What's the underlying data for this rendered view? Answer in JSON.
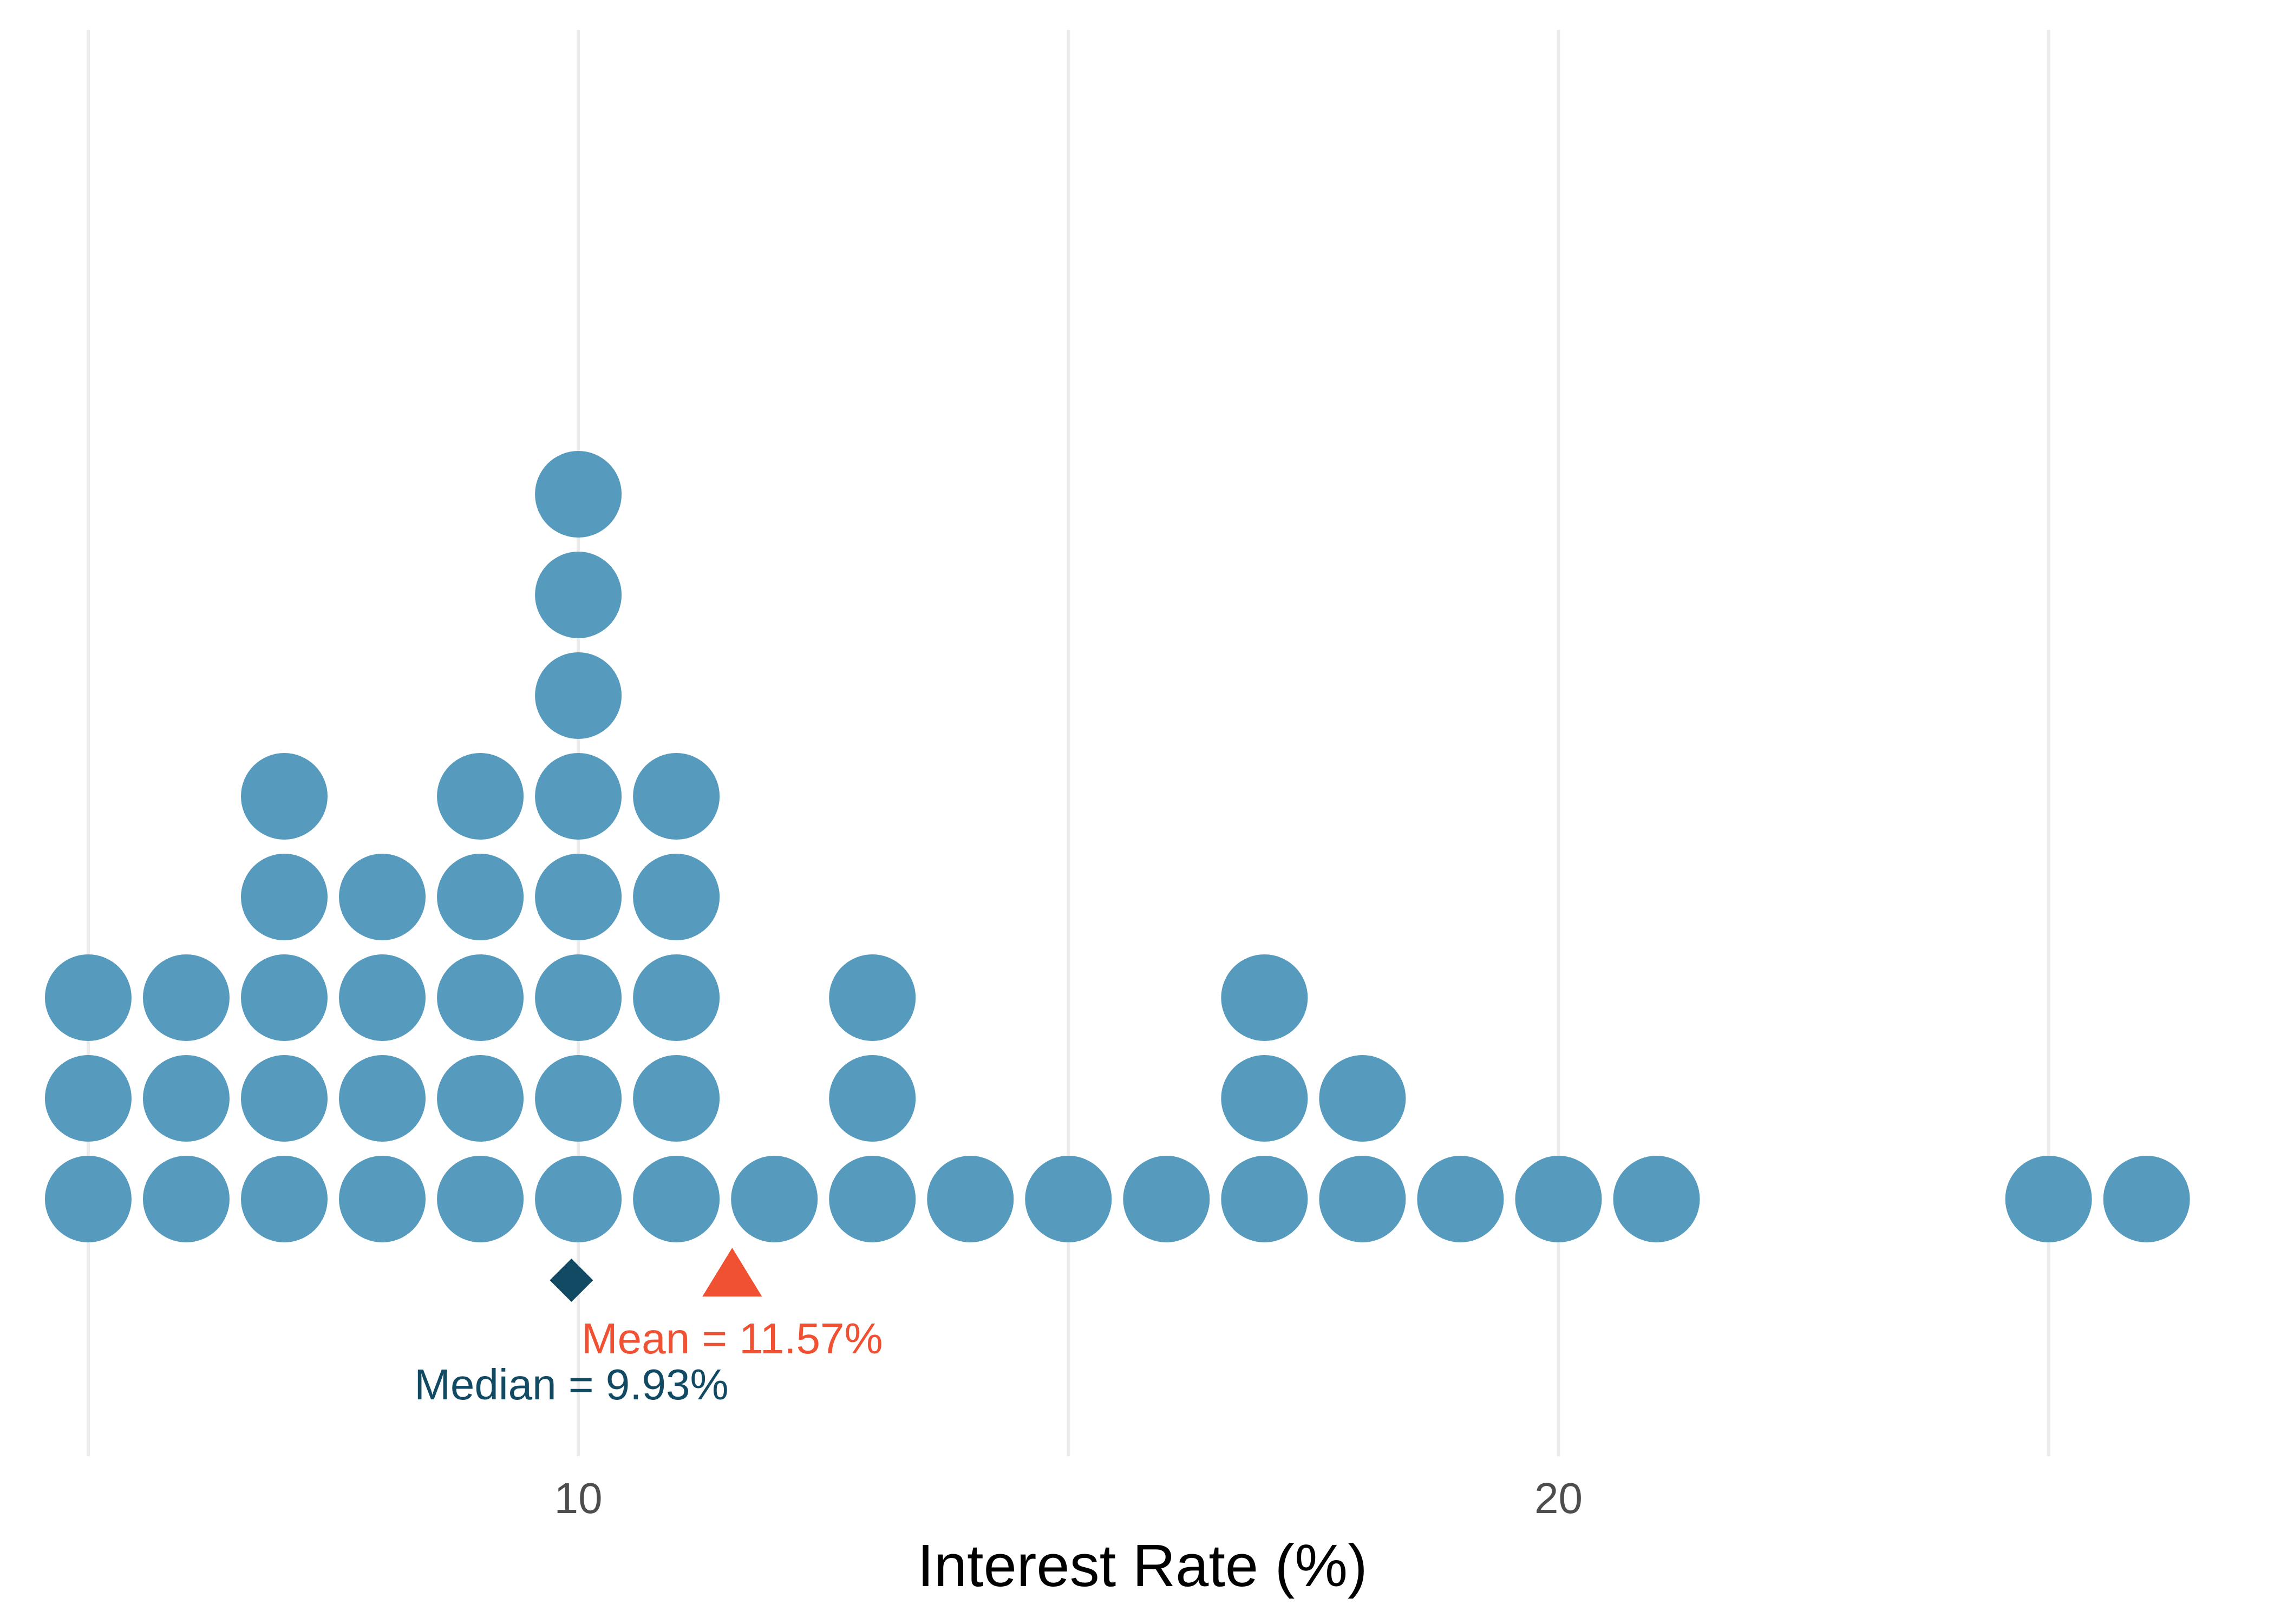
{
  "chart_data": {
    "type": "scatter",
    "subtype": "dot-plot",
    "title": "",
    "xlabel": "Interest Rate (%)",
    "ylabel": "",
    "xlim": [
      4.1,
      27.3
    ],
    "xticks": [
      10,
      20
    ],
    "gridlines_x": [
      5,
      10,
      15,
      20,
      25
    ],
    "grid": true,
    "dot_color": "#569bbd",
    "stacks": [
      {
        "x": 5.0,
        "count": 3
      },
      {
        "x": 6.0,
        "count": 3
      },
      {
        "x": 7.0,
        "count": 5
      },
      {
        "x": 8.0,
        "count": 4
      },
      {
        "x": 9.0,
        "count": 5
      },
      {
        "x": 10.0,
        "count": 8
      },
      {
        "x": 11.0,
        "count": 5
      },
      {
        "x": 12.0,
        "count": 1
      },
      {
        "x": 13.0,
        "count": 3
      },
      {
        "x": 14.0,
        "count": 1
      },
      {
        "x": 15.0,
        "count": 1
      },
      {
        "x": 16.0,
        "count": 1
      },
      {
        "x": 17.0,
        "count": 3
      },
      {
        "x": 18.0,
        "count": 2
      },
      {
        "x": 19.0,
        "count": 1
      },
      {
        "x": 20.0,
        "count": 1
      },
      {
        "x": 21.0,
        "count": 1
      },
      {
        "x": 25.0,
        "count": 1
      },
      {
        "x": 26.0,
        "count": 1
      }
    ],
    "median": {
      "value": 9.93,
      "label": "Median = 9.93%",
      "color": "#124a63",
      "marker": "diamond"
    },
    "mean": {
      "value": 11.57,
      "label": "Mean = 11.57%",
      "color": "#f05133",
      "marker": "triangle"
    }
  }
}
